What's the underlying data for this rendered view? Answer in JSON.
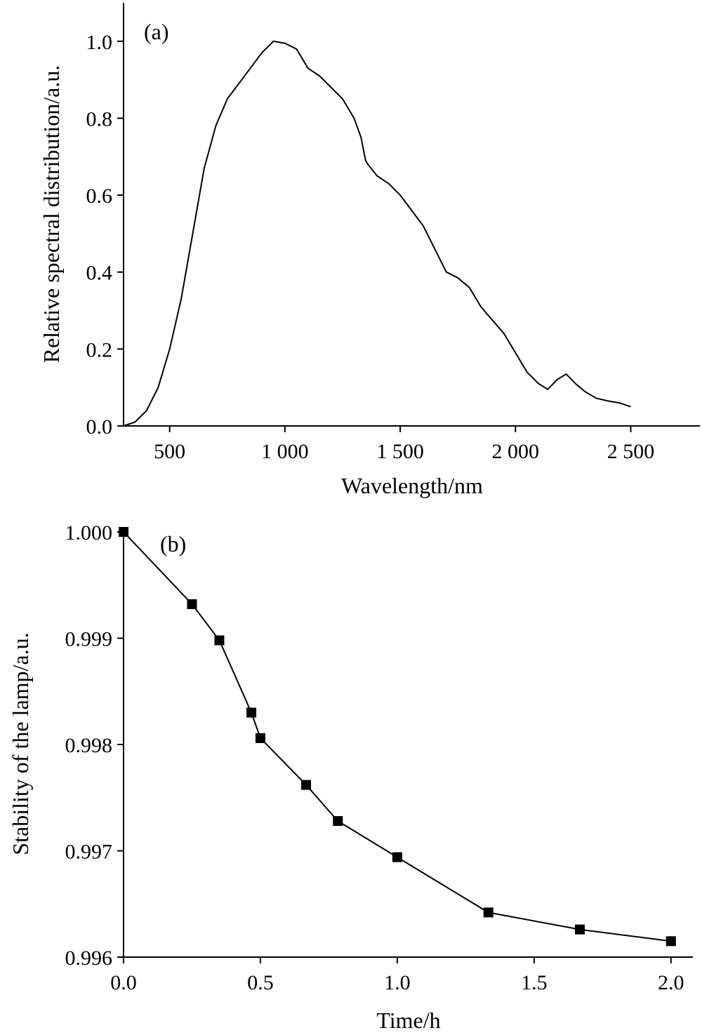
{
  "chart_data": [
    {
      "type": "line",
      "panel_label": "(a)",
      "xlabel": "Wavelength/nm",
      "ylabel": "Relative spectral distribution/a.u.",
      "xlim": [
        300,
        2800
      ],
      "ylim": [
        0.0,
        1.1
      ],
      "xticks": [
        500,
        1000,
        1500,
        2000,
        2500
      ],
      "xtick_labels": [
        "500",
        "1 000",
        "1 500",
        "2 000",
        "2 500"
      ],
      "yticks": [
        0.0,
        0.2,
        0.4,
        0.6,
        0.8,
        1.0
      ],
      "ytick_labels": [
        "0.0",
        "0.2",
        "0.4",
        "0.6",
        "0.8",
        "1.0"
      ],
      "grid": false,
      "series": [
        {
          "x": [
            300,
            350,
            400,
            450,
            500,
            550,
            600,
            650,
            700,
            750,
            800,
            850,
            900,
            950,
            1000,
            1050,
            1100,
            1150,
            1200,
            1250,
            1300,
            1330,
            1350,
            1360,
            1400,
            1450,
            1500,
            1550,
            1600,
            1650,
            1700,
            1750,
            1800,
            1850,
            1900,
            1950,
            2000,
            2050,
            2100,
            2140,
            2180,
            2220,
            2260,
            2300,
            2350,
            2400,
            2450,
            2500
          ],
          "y": [
            0.0,
            0.01,
            0.04,
            0.1,
            0.2,
            0.33,
            0.5,
            0.67,
            0.78,
            0.85,
            0.89,
            0.93,
            0.97,
            1.0,
            0.995,
            0.98,
            0.93,
            0.91,
            0.88,
            0.85,
            0.8,
            0.75,
            0.69,
            0.68,
            0.65,
            0.63,
            0.6,
            0.56,
            0.52,
            0.46,
            0.4,
            0.385,
            0.36,
            0.31,
            0.275,
            0.24,
            0.19,
            0.14,
            0.11,
            0.095,
            0.12,
            0.135,
            0.11,
            0.09,
            0.072,
            0.065,
            0.06,
            0.05
          ]
        }
      ]
    },
    {
      "type": "line",
      "panel_label": "(b)",
      "xlabel": "Time/h",
      "ylabel": "Stability of the lamp/a.u.",
      "xlim": [
        0.0,
        2.08
      ],
      "ylim": [
        0.996,
        1.0
      ],
      "xticks": [
        0.0,
        0.5,
        1.0,
        1.5,
        2.0
      ],
      "xtick_labels": [
        "0.0",
        "0.5",
        "1.0",
        "1.5",
        "2.0"
      ],
      "yticks": [
        0.996,
        0.997,
        0.998,
        0.999,
        1.0
      ],
      "ytick_labels": [
        "0.996",
        "0.997",
        "0.998",
        "0.999",
        "1.000"
      ],
      "grid": false,
      "markers": "square",
      "series": [
        {
          "x": [
            0.0,
            0.25,
            0.35,
            0.467,
            0.5,
            0.667,
            0.783,
            1.0,
            1.333,
            1.667,
            2.0
          ],
          "y": [
            1.0,
            0.99932,
            0.99898,
            0.9983,
            0.99806,
            0.99762,
            0.99728,
            0.99694,
            0.99642,
            0.99626,
            0.99615
          ]
        }
      ]
    }
  ]
}
